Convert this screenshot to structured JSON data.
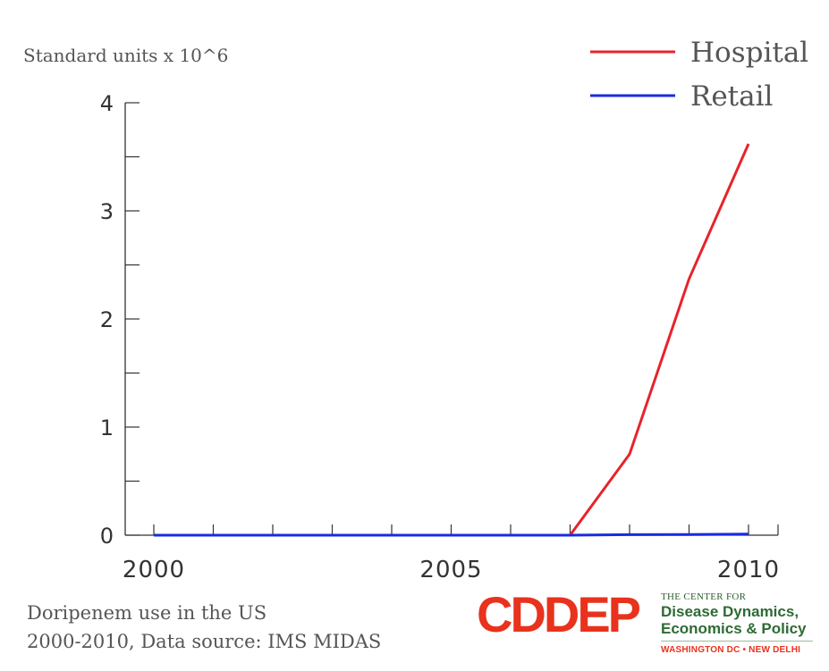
{
  "chart_data": {
    "type": "line",
    "ylabel": "Standard units x 10^6",
    "xlabel": "",
    "x": [
      2000,
      2001,
      2002,
      2003,
      2004,
      2005,
      2006,
      2007,
      2008,
      2009,
      2010
    ],
    "xlim": [
      2000,
      2010
    ],
    "ylim": [
      0,
      4
    ],
    "x_ticks": [
      2000,
      2005,
      2010
    ],
    "y_ticks": [
      0,
      1,
      2,
      3,
      4
    ],
    "series": [
      {
        "name": "Hospital",
        "color": "#e8232a",
        "values": [
          0,
          0,
          0,
          0,
          0,
          0,
          0,
          0,
          0.75,
          2.37,
          3.62
        ]
      },
      {
        "name": "Retail",
        "color": "#1a2be0",
        "values": [
          0,
          0,
          0,
          0,
          0,
          0,
          0,
          0,
          0.005,
          0.007,
          0.01
        ]
      }
    ],
    "legend_position": "top-right",
    "grid": false
  },
  "caption": {
    "line1": "Doripenem use in the US",
    "line2": "2000-2010, Data source: IMS MIDAS"
  },
  "logo": {
    "mark": "CDDEP",
    "small": "THE CENTER FOR",
    "name_line1": "Disease Dynamics,",
    "name_line2": "Economics & Policy",
    "place": "WASHINGTON DC • NEW DELHI",
    "accent_color": "#e8321d",
    "green_color": "#2e6b35"
  }
}
